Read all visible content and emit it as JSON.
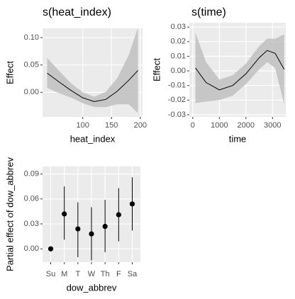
{
  "chart_data": [
    {
      "type": "line",
      "title": "s(heat_index)",
      "x_label": "heat_index",
      "y_label": "Effect",
      "x": [
        38,
        60,
        80,
        100,
        120,
        140,
        160,
        180,
        196
      ],
      "values": [
        0.035,
        0.018,
        0.003,
        -0.01,
        -0.017,
        -0.013,
        0.002,
        0.022,
        0.04
      ],
      "lower": [
        0.008,
        -0.002,
        -0.01,
        -0.02,
        -0.027,
        -0.027,
        -0.022,
        -0.022,
        -0.038
      ],
      "upper": [
        0.063,
        0.038,
        0.016,
        0.0,
        -0.008,
        0.001,
        0.026,
        0.068,
        0.118
      ],
      "color": "#000000",
      "ribbon_color": "#bfbfbf",
      "xlim": [
        30,
        204
      ],
      "xticks": [
        100,
        150,
        200
      ],
      "ylim": [
        -0.045,
        0.117
      ],
      "yticks": [
        {
          "value": 0,
          "label": "0.00"
        },
        0.05,
        {
          "value": 0.1,
          "label": "0.10"
        }
      ],
      "grid": true
    },
    {
      "type": "line",
      "title": "s(time)",
      "x_label": "time",
      "y_label": "Effect",
      "x": [
        100,
        500,
        1000,
        1500,
        2000,
        2500,
        2800,
        3100,
        3440
      ],
      "values": [
        0.002,
        -0.008,
        -0.013,
        -0.01,
        -0.002,
        0.009,
        0.014,
        0.012,
        0.001
      ],
      "lower": [
        -0.022,
        -0.021,
        -0.02,
        -0.017,
        -0.009,
        0.001,
        0.006,
        0.002,
        -0.023
      ],
      "upper": [
        0.026,
        0.006,
        -0.006,
        -0.003,
        0.005,
        0.017,
        0.022,
        0.022,
        0.025
      ],
      "color": "#000000",
      "ribbon_color": "#bfbfbf",
      "xlim": [
        -130,
        3500
      ],
      "xticks": [
        0,
        1000,
        2000,
        3000
      ],
      "ylim": [
        -0.0315,
        0.033
      ],
      "yticks": [
        -0.03,
        -0.02,
        -0.01,
        {
          "value": 0,
          "label": "0.00"
        },
        0.01,
        0.02,
        0.03
      ],
      "grid": true
    },
    {
      "type": "pointrange",
      "x_label": "dow_abbrev",
      "y_label": "Partial effect of dow_abbrev",
      "categories": [
        "Su",
        "M",
        "T",
        "W",
        "Th",
        "F",
        "Sa"
      ],
      "values": [
        0.0,
        0.042,
        0.024,
        0.018,
        0.027,
        0.041,
        0.054
      ],
      "lower": [
        0.0,
        0.011,
        -0.01,
        -0.014,
        -0.004,
        0.009,
        0.022
      ],
      "upper": [
        0.0,
        0.075,
        0.056,
        0.05,
        0.059,
        0.073,
        0.086
      ],
      "color": "#000000",
      "ylim": [
        -0.016,
        0.099
      ],
      "yticks": [
        {
          "value": 0,
          "label": "0.00"
        },
        0.03,
        0.06,
        0.09
      ],
      "grid": true
    }
  ]
}
